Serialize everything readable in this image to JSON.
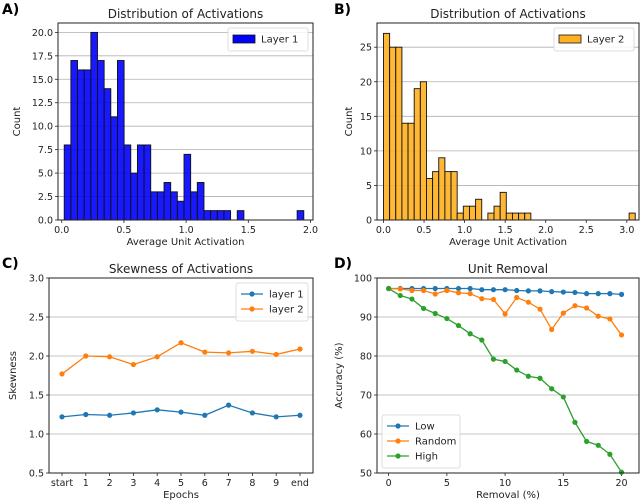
{
  "chart_data": [
    {
      "panel_label": "A)",
      "type": "bar",
      "title": "Distribution of Activations",
      "xlabel": "Average Unit Activation",
      "ylabel": "Count",
      "xlim": [
        -0.03,
        2.02
      ],
      "ylim": [
        0,
        21
      ],
      "xticks": [
        "0.0",
        "0.5",
        "1.0",
        "1.5",
        "2.0"
      ],
      "xtick_values": [
        0,
        0.5,
        1.0,
        1.5,
        2.0
      ],
      "yticks": [
        "0.0",
        "2.5",
        "5.0",
        "7.5",
        "10.0",
        "12.5",
        "15.0",
        "17.5",
        "20.0"
      ],
      "ytick_values": [
        0,
        2.5,
        5,
        7.5,
        10,
        12.5,
        15,
        17.5,
        20
      ],
      "grid": "horizontal",
      "legend": "top-right",
      "series": [
        {
          "name": "Layer 1",
          "color": "#0000ff",
          "bin_start": 0.02,
          "bin_width": 0.0535,
          "counts": [
            8,
            17,
            16,
            16,
            20,
            17,
            14,
            11,
            17,
            8,
            5,
            8,
            8,
            3,
            3,
            4,
            3,
            2,
            7,
            3,
            4,
            1,
            1,
            1,
            1,
            0,
            1,
            0,
            0,
            0,
            0,
            0,
            0,
            0,
            0,
            1
          ]
        }
      ]
    },
    {
      "panel_label": "B)",
      "type": "bar",
      "title": "Distribution of Activations",
      "xlabel": "Average Unit Activation",
      "ylabel": "Count",
      "xlim": [
        -0.08,
        3.15
      ],
      "ylim": [
        0,
        28.5
      ],
      "xticks": [
        "0.0",
        "0.5",
        "1.0",
        "1.5",
        "2.0",
        "2.5",
        "3.0"
      ],
      "xtick_values": [
        0,
        0.5,
        1.0,
        1.5,
        2.0,
        2.5,
        3.0
      ],
      "yticks": [
        "0",
        "5",
        "10",
        "15",
        "20",
        "25"
      ],
      "ytick_values": [
        0,
        5,
        10,
        15,
        20,
        25
      ],
      "grid": "horizontal",
      "legend": "top-right",
      "series": [
        {
          "name": "Layer 2",
          "color": "#ffb020",
          "bin_start": 0.0,
          "bin_width": 0.0757,
          "counts": [
            27,
            25,
            25,
            14,
            14,
            19,
            20,
            6,
            7,
            9,
            7,
            7,
            1,
            2,
            2,
            3,
            0,
            1,
            2,
            4,
            1,
            1,
            1,
            1,
            0,
            0,
            0,
            0,
            0,
            0,
            0,
            0,
            0,
            0,
            0,
            0,
            0,
            0,
            0,
            0,
            1
          ]
        }
      ]
    },
    {
      "panel_label": "C)",
      "type": "line",
      "title": "Skewness of Activations",
      "xlabel": "Epochs",
      "ylabel": "Skewness",
      "categories": [
        "start",
        "1",
        "2",
        "3",
        "4",
        "5",
        "6",
        "7",
        "8",
        "9",
        "end"
      ],
      "ylim": [
        0.5,
        3.0
      ],
      "yticks": [
        "0.5",
        "1.0",
        "1.5",
        "2.0",
        "2.5",
        "3.0"
      ],
      "ytick_values": [
        0.5,
        1.0,
        1.5,
        2.0,
        2.5,
        3.0
      ],
      "grid": "horizontal",
      "legend": "top-right",
      "series": [
        {
          "name": "layer 1",
          "color": "#1f77b4",
          "values": [
            1.22,
            1.25,
            1.24,
            1.27,
            1.31,
            1.28,
            1.24,
            1.37,
            1.27,
            1.22,
            1.24
          ]
        },
        {
          "name": "layer 2",
          "color": "#ff7f0e",
          "values": [
            1.77,
            2.0,
            1.99,
            1.89,
            1.99,
            2.17,
            2.05,
            2.04,
            2.06,
            2.02,
            2.09
          ]
        }
      ]
    },
    {
      "panel_label": "D)",
      "type": "line",
      "title": "Unit Removal",
      "xlabel": "Removal (%)",
      "ylabel": "Accuracy (%)",
      "x": [
        0,
        1,
        2,
        3,
        4,
        5,
        6,
        7,
        8,
        9,
        10,
        11,
        12,
        13,
        14,
        15,
        16,
        17,
        18,
        19,
        20
      ],
      "xlim": [
        -1,
        21.5
      ],
      "ylim": [
        50,
        100
      ],
      "xticks": [
        "0",
        "5",
        "10",
        "15",
        "20"
      ],
      "xtick_values": [
        0,
        5,
        10,
        15,
        20
      ],
      "yticks": [
        "50",
        "60",
        "70",
        "80",
        "90",
        "100"
      ],
      "ytick_values": [
        50,
        60,
        70,
        80,
        90,
        100
      ],
      "grid": "horizontal",
      "legend": "bottom-left",
      "series": [
        {
          "name": "Low",
          "color": "#1f77b4",
          "values": [
            97.3,
            97.3,
            97.3,
            97.3,
            97.3,
            97.3,
            97.3,
            97.3,
            97.0,
            97.0,
            97.0,
            96.8,
            96.7,
            96.7,
            96.5,
            96.4,
            96.3,
            96.0,
            96.0,
            96.0,
            95.8
          ]
        },
        {
          "name": "Random",
          "color": "#ff7f0e",
          "values": [
            97.3,
            97.2,
            96.8,
            96.8,
            95.9,
            96.8,
            96.2,
            96.0,
            94.7,
            94.5,
            90.8,
            95.0,
            93.8,
            92.0,
            86.8,
            91.0,
            92.9,
            92.3,
            90.2,
            89.5,
            85.4
          ]
        },
        {
          "name": "High",
          "color": "#2ca02c",
          "values": [
            97.3,
            95.5,
            94.6,
            92.2,
            90.9,
            89.6,
            87.8,
            85.7,
            84.1,
            79.2,
            78.6,
            76.4,
            74.8,
            74.3,
            71.6,
            69.5,
            63.0,
            58.1,
            57.1,
            54.8,
            50.2
          ]
        }
      ]
    }
  ]
}
